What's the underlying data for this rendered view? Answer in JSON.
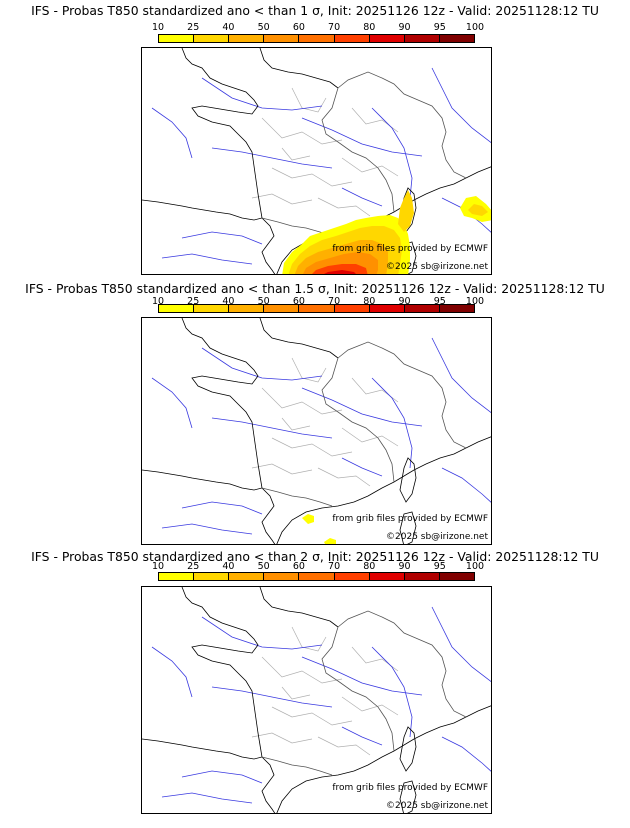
{
  "colorbar": {
    "ticks": [
      "10",
      "25",
      "40",
      "50",
      "60",
      "70",
      "80",
      "90",
      "95",
      "100"
    ],
    "colors": [
      "#ffff00",
      "#ffd700",
      "#ffb000",
      "#ff9000",
      "#ff7000",
      "#ff4000",
      "#e00000",
      "#b00000",
      "#800000"
    ]
  },
  "panels": [
    {
      "title": "IFS - Probas T850  standardized ano < than 1 σ, Init: 20251126 12z - Valid: 20251128:12 TU",
      "credit_source": "from grib files provided by ECMWF",
      "credit_copy": "©2025 sb@irizone.net"
    },
    {
      "title": "IFS - Probas T850  standardized ano < than 1.5 σ, Init: 20251126 12z - Valid: 20251128:12 TU",
      "credit_source": "from grib files provided by ECMWF",
      "credit_copy": "©2025 sb@irizone.net"
    },
    {
      "title": "IFS - Probas T850  standardized ano < than 2 σ, Init: 20251126 12z - Valid: 20251128:12 TU",
      "credit_source": "from grib files provided by ECMWF",
      "credit_copy": "©2025 sb@irizone.net"
    }
  ]
}
